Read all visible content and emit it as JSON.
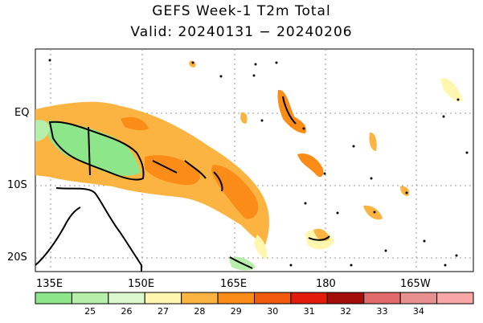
{
  "title": "GEFS Week-1 T2m Total",
  "subtitle": "Valid: 20240131 − 20240206",
  "lat_labels": [
    "EQ",
    "10S",
    "20S"
  ],
  "lon_labels": [
    "135E",
    "150E",
    "165E",
    "180",
    "165W"
  ],
  "colorbar": {
    "labels": [
      "25",
      "26",
      "27",
      "28",
      "29",
      "30",
      "31",
      "32",
      "33",
      "34"
    ],
    "colors": [
      "#8ee68a",
      "#b5efa9",
      "#dbf7cd",
      "#fff7b0",
      "#fbb441",
      "#fb8c18",
      "#f05a0a",
      "#e11c0a",
      "#a30d0a",
      "#e36a6a",
      "#e69090",
      "#f8a6a6"
    ]
  },
  "map_colors": {
    "land_outline": "#000000",
    "grid": "#999999",
    "fill_28": "#fff7b0",
    "fill_29": "#fbb441",
    "fill_30": "#fb8c18",
    "fill_31": "#f05a0a",
    "fill_25": "#8ee68a",
    "fill_26": "#b5efa9"
  }
}
